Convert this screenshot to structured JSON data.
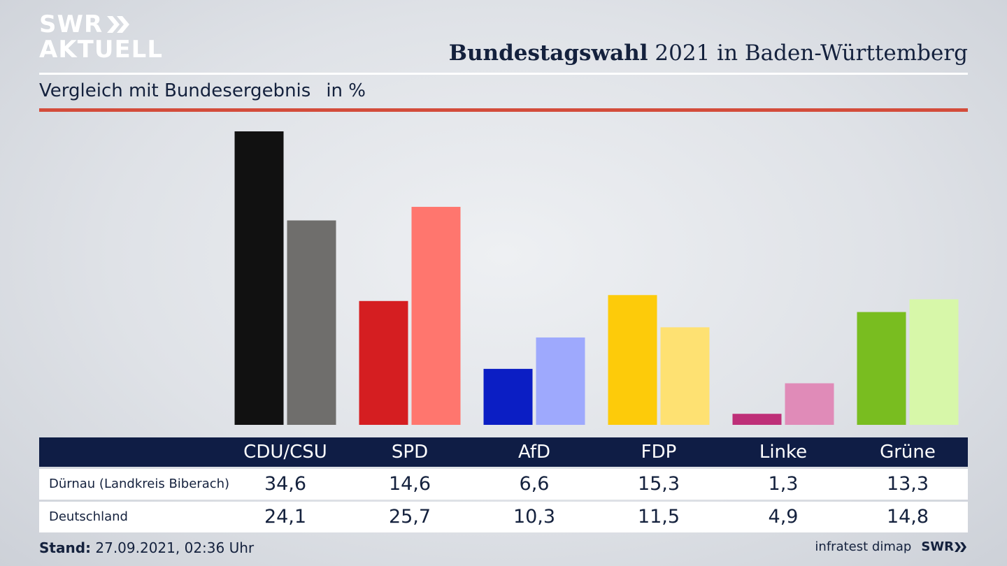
{
  "logo": {
    "line1": "SWR",
    "line2": "AKTUELL"
  },
  "headline": {
    "bold": "Bundestagswahl",
    "rest": " 2021 in Baden-Württemberg"
  },
  "subtitle": {
    "text": "Vergleich mit Bundesergebnis",
    "unit": "in %"
  },
  "colors": {
    "accent_rule": "#d34c3b",
    "header_bg": "#0f1d45",
    "text": "#14213d"
  },
  "chart_data": {
    "type": "bar",
    "categories": [
      "CDU/CSU",
      "SPD",
      "AfD",
      "FDP",
      "Linke",
      "Grüne"
    ],
    "series": [
      {
        "name": "Dürnau (Landkreis Biberach)",
        "values": [
          34.6,
          14.6,
          6.6,
          15.3,
          1.3,
          13.3
        ],
        "colors": [
          "#111111",
          "#d51e21",
          "#0b1ec4",
          "#fdcb0a",
          "#be2f78",
          "#79bd20"
        ]
      },
      {
        "name": "Deutschland",
        "values": [
          24.1,
          25.7,
          10.3,
          11.5,
          4.9,
          14.8
        ],
        "colors": [
          "#6f6e6c",
          "#ff766e",
          "#9ea9fd",
          "#fee172",
          "#e08bb8",
          "#d7f7a9"
        ]
      }
    ],
    "ylim": [
      0,
      34.6
    ],
    "grid": false,
    "legend": "table-below"
  },
  "footer": {
    "stand_label": "Stand:",
    "stand_value": " 27.09.2021, 02:36 Uhr",
    "source": "infratest dimap",
    "brand": "SWR"
  }
}
